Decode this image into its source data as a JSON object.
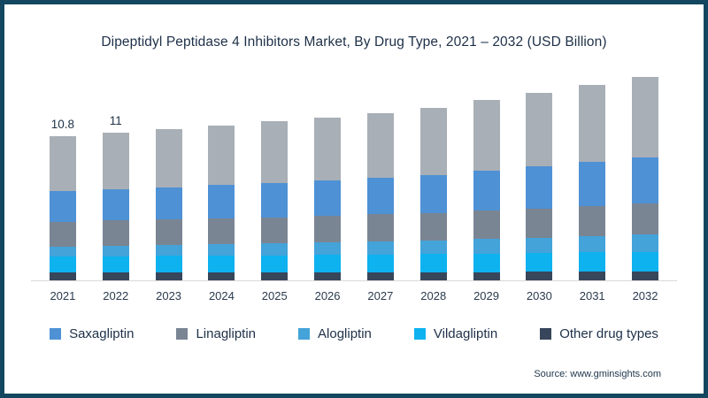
{
  "card": {
    "border_color": "#12475f",
    "background": "#ffffff"
  },
  "title": "Dipeptidyl Peptidase 4 Inhibitors Market, By Drug Type, 2021 – 2032 (USD Billion)",
  "source": "Source: www.gminsights.com",
  "legend": [
    {
      "label": "Saxagliptin",
      "color": "#4e91d5"
    },
    {
      "label": "Linagliptin",
      "color": "#7a8593"
    },
    {
      "label": "Alogliptin",
      "color": "#44a3d9"
    },
    {
      "label": "Vildagliptin",
      "color": "#0db2ef"
    },
    {
      "label": "Other drug types",
      "color": "#37465a"
    }
  ],
  "chart_data": {
    "type": "bar",
    "stacked": true,
    "title": "Dipeptidyl Peptidase 4 Inhibitors Market, By Drug Type, 2021 – 2032 (USD Billion)",
    "xlabel": "",
    "ylabel": "",
    "units": "USD Billion",
    "grid": false,
    "legend_position": "bottom",
    "ylim": [
      0,
      15.5
    ],
    "categories": [
      "2021",
      "2022",
      "2023",
      "2024",
      "2025",
      "2026",
      "2027",
      "2028",
      "2029",
      "2030",
      "2031",
      "2032"
    ],
    "series": [
      {
        "name": "Other drug types",
        "color": "#37465a",
        "values": [
          0.6,
          0.6,
          0.61,
          0.61,
          0.61,
          0.62,
          0.62,
          0.62,
          0.63,
          0.64,
          0.64,
          0.65
        ]
      },
      {
        "name": "Vildagliptin",
        "color": "#0db2ef",
        "values": [
          1.2,
          1.22,
          1.23,
          1.25,
          1.27,
          1.3,
          1.32,
          1.34,
          1.38,
          1.42,
          1.46,
          1.5
        ]
      },
      {
        "name": "Alogliptin",
        "color": "#44a3d9",
        "values": [
          0.75,
          0.78,
          0.81,
          0.85,
          0.89,
          0.92,
          0.97,
          1.01,
          1.08,
          1.15,
          1.22,
          1.3
        ]
      },
      {
        "name": "Linagliptin",
        "color": "#7a8593",
        "values": [
          1.85,
          1.88,
          1.9,
          1.93,
          1.96,
          1.99,
          2.03,
          2.06,
          2.12,
          2.18,
          2.24,
          2.3
        ]
      },
      {
        "name": "Saxagliptin",
        "color": "#4e91d5",
        "values": [
          2.3,
          2.36,
          2.43,
          2.51,
          2.59,
          2.66,
          2.75,
          2.85,
          3.0,
          3.14,
          3.29,
          3.45
        ]
      },
      {
        "name": "Unlabeled top gray segment",
        "color": "#a9afb6",
        "values": [
          4.1,
          4.21,
          4.32,
          4.45,
          4.59,
          4.72,
          4.86,
          5.03,
          5.28,
          5.52,
          5.78,
          6.05
        ]
      }
    ],
    "totals": [
      10.8,
      11.05,
      11.3,
      11.6,
      11.9,
      12.2,
      12.55,
      12.9,
      13.5,
      14.05,
      14.65,
      15.25
    ],
    "bar_labels": [
      "10.8",
      "11",
      "",
      "",
      "",
      "",
      "",
      "",
      "",
      "",
      "",
      ""
    ]
  }
}
